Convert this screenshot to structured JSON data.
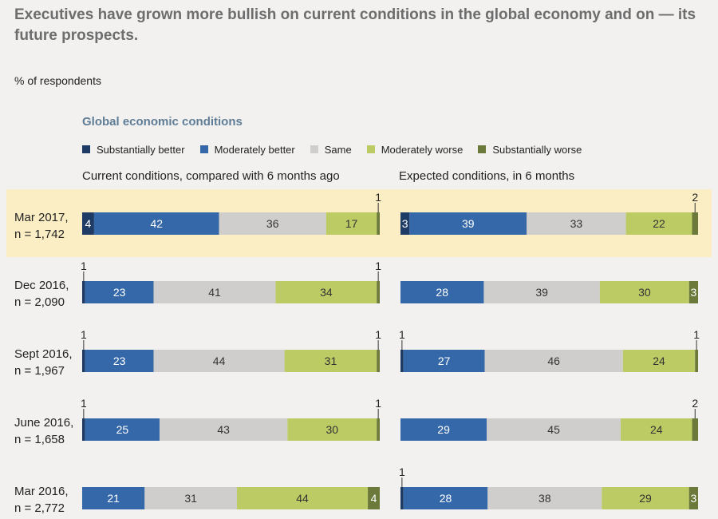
{
  "title": "Executives have grown more bullish on current conditions in the global economy and on — its future prospects.",
  "unit_label": "% of respondents",
  "section_title": "Global economic conditions",
  "legend": [
    {
      "name": "Substantially better",
      "color": "#1e3b66"
    },
    {
      "name": "Moderately better",
      "color": "#3568a8"
    },
    {
      "name": "Same",
      "color": "#cfcecc"
    },
    {
      "name": "Moderately worse",
      "color": "#bccb64"
    },
    {
      "name": "Substantially worse",
      "color": "#6b7a3a"
    }
  ],
  "panels": [
    {
      "label": "Current conditions, compared with 6 months ago"
    },
    {
      "label": "Expected conditions, in 6 months"
    }
  ],
  "chart_data": {
    "type": "bar",
    "orientation": "horizontal",
    "stacked": true,
    "percent": true,
    "categories": [
      "Mar 2017, n = 1,742",
      "Dec 2016, n = 2,090",
      "Sept 2016, n = 1,967",
      "June 2016, n = 1,658",
      "Mar 2016, n = 2,772"
    ],
    "category_lines": [
      [
        "Mar 2017,",
        "n = 1,742"
      ],
      [
        "Dec 2016,",
        "n = 2,090"
      ],
      [
        "Sept 2016,",
        "n = 1,967"
      ],
      [
        "June 2016,",
        "n = 1,658"
      ],
      [
        "Mar 2016,",
        "n = 2,772"
      ]
    ],
    "highlighted_category": "Mar 2017, n = 1,742",
    "series_names": [
      "Substantially better",
      "Moderately better",
      "Same",
      "Moderately worse",
      "Substantially worse"
    ],
    "series_colors": [
      "#1e3b66",
      "#3568a8",
      "#cfcecc",
      "#bccb64",
      "#6b7a3a"
    ],
    "current_conditions": [
      [
        4,
        42,
        36,
        17,
        1
      ],
      [
        1,
        23,
        41,
        34,
        1
      ],
      [
        1,
        23,
        44,
        31,
        1
      ],
      [
        1,
        25,
        43,
        30,
        1
      ],
      [
        0,
        21,
        31,
        44,
        4
      ]
    ],
    "expected_conditions": [
      [
        3,
        39,
        33,
        22,
        2
      ],
      [
        0,
        28,
        39,
        30,
        3
      ],
      [
        1,
        27,
        46,
        24,
        1
      ],
      [
        0,
        29,
        45,
        24,
        2
      ],
      [
        1,
        28,
        38,
        29,
        3
      ]
    ]
  }
}
